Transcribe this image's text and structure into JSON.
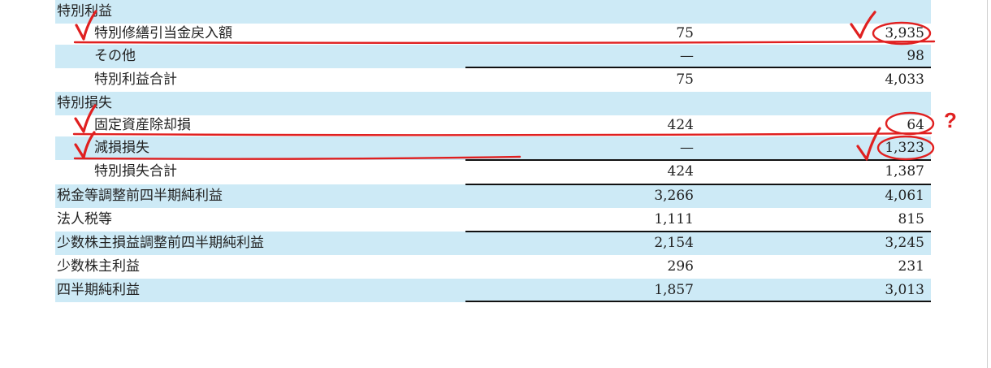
{
  "table": {
    "rows": [
      {
        "label": "特別利益",
        "v1": "",
        "v2": "",
        "indent": 0,
        "shade": true
      },
      {
        "label": "特別修繕引当金戻入額",
        "v1": "75",
        "v2": "3,935",
        "indent": 1,
        "shade": false
      },
      {
        "label": "その他",
        "v1": "—",
        "v2": "98",
        "indent": 1,
        "shade": true
      },
      {
        "label": "特別利益合計",
        "v1": "75",
        "v2": "4,033",
        "indent": 1,
        "shade": false
      },
      {
        "label": "特別損失",
        "v1": "",
        "v2": "",
        "indent": 0,
        "shade": true
      },
      {
        "label": "固定資産除却損",
        "v1": "424",
        "v2": "64",
        "indent": 1,
        "shade": false
      },
      {
        "label": "減損損失",
        "v1": "—",
        "v2": "1,323",
        "indent": 1,
        "shade": true
      },
      {
        "label": "特別損失合計",
        "v1": "424",
        "v2": "1,387",
        "indent": 1,
        "shade": false
      },
      {
        "label": "税金等調整前四半期純利益",
        "v1": "3,266",
        "v2": "4,061",
        "indent": 0,
        "shade": true
      },
      {
        "label": "法人税等",
        "v1": "1,111",
        "v2": "815",
        "indent": 0,
        "shade": false
      },
      {
        "label": "少数株主損益調整前四半期純利益",
        "v1": "2,154",
        "v2": "3,245",
        "indent": 0,
        "shade": true
      },
      {
        "label": "少数株主利益",
        "v1": "296",
        "v2": "231",
        "indent": 0,
        "shade": false
      },
      {
        "label": "四半期純利益",
        "v1": "1,857",
        "v2": "3,013",
        "indent": 0,
        "shade": true
      }
    ]
  },
  "annotations": {
    "question_mark": "?",
    "color": "#e02020"
  }
}
